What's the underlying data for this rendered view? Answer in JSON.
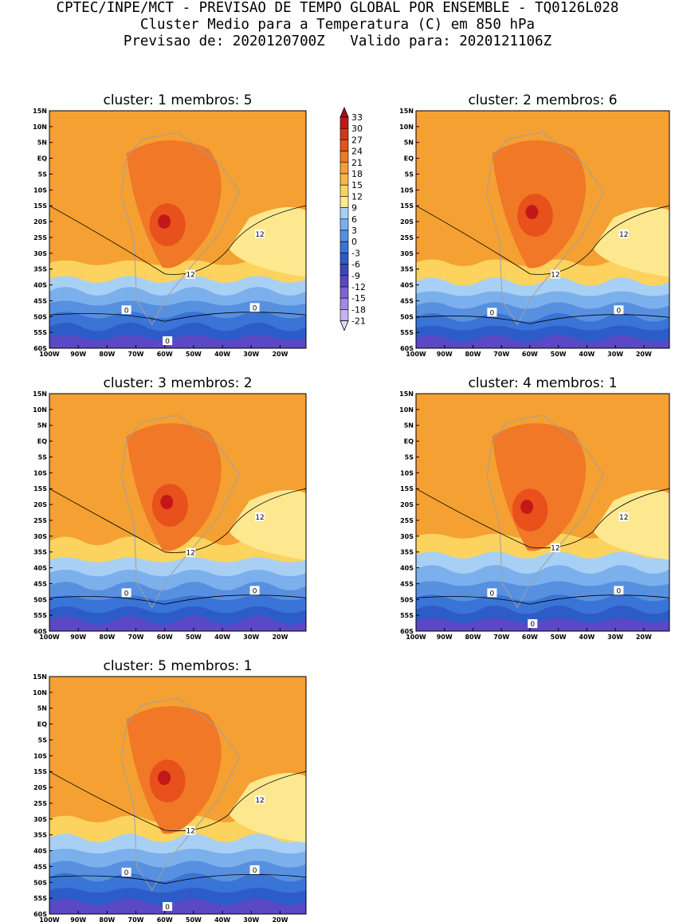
{
  "header": {
    "line1": "CPTEC/INPE/MCT - PREVISAO DE TEMPO GLOBAL POR ENSEMBLE - TQ0126L028",
    "line2": "Cluster Medio para a Temperatura (C) em 850 hPa",
    "line3": "Previsao de: 2020120700Z   Valido para: 2020121106Z"
  },
  "lat_labels": [
    "15N",
    "10N",
    "5N",
    "EQ",
    "5S",
    "10S",
    "15S",
    "20S",
    "25S",
    "30S",
    "35S",
    "40S",
    "45S",
    "50S",
    "55S",
    "60S"
  ],
  "lon_labels": [
    "100W",
    "90W",
    "80W",
    "70W",
    "60W",
    "50W",
    "40W",
    "30W",
    "20W"
  ],
  "panels": [
    {
      "title": "cluster: 1   membros: 5",
      "contour_labels": [
        "12",
        "12",
        "0",
        "0",
        "0"
      ]
    },
    {
      "title": "cluster: 2   membros: 6",
      "contour_labels": [
        "12",
        "12",
        "0",
        "0"
      ]
    },
    {
      "title": "cluster: 3   membros: 2",
      "contour_labels": [
        "12",
        "12",
        "0",
        "0"
      ]
    },
    {
      "title": "cluster: 4   membros: 1",
      "contour_labels": [
        "12",
        "12",
        "0",
        "0",
        "0"
      ]
    },
    {
      "title": "cluster: 5   membros: 1",
      "contour_labels": [
        "12",
        "12",
        "0",
        "0",
        "0"
      ]
    }
  ],
  "colorbar": {
    "labels": [
      "33",
      "30",
      "27",
      "24",
      "21",
      "18",
      "15",
      "12",
      "9",
      "6",
      "3",
      "0",
      "-3",
      "-6",
      "-9",
      "-12",
      "-15",
      "-18",
      "-21"
    ],
    "colors": [
      "#a01010",
      "#c41818",
      "#d8341e",
      "#e8501c",
      "#f07826",
      "#f5a032",
      "#f8b840",
      "#fbd35e",
      "#fde890",
      "#a8d0f4",
      "#7cb0ec",
      "#5890e0",
      "#3a74d6",
      "#2d5cc8",
      "#3c46bc",
      "#5a48c4",
      "#7c64d2",
      "#a08ade",
      "#c4b2ea",
      "#e4d8f4"
    ]
  }
}
